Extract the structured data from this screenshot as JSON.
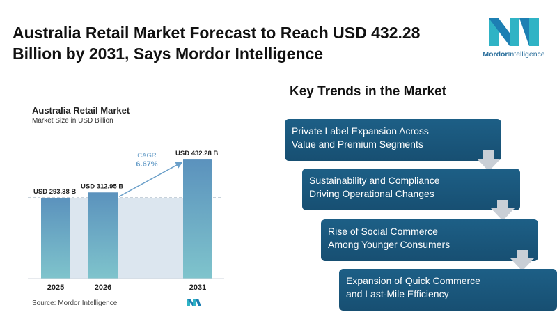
{
  "headline": {
    "line1": "Australia Retail Market Forecast to Reach USD 432.28",
    "line2": "Billion by 2031, Says Mordor Intelligence"
  },
  "logo": {
    "brand": "Mordor",
    "brand_suffix": "Intelligence",
    "icon": "mordor-logo-icon"
  },
  "chart_data": {
    "type": "bar",
    "title": "Australia Retail Market",
    "subtitle": "Market Size in USD Billion",
    "categories": [
      "2025",
      "2026",
      "2031"
    ],
    "values": [
      293.38,
      312.95,
      432.28
    ],
    "data_labels": [
      "USD 293.38 B",
      "USD 312.95 B",
      "USD 432.28 B"
    ],
    "cagr_label": "CAGR",
    "cagr_value": "6.67%",
    "grid": false,
    "colors": {
      "bar_top": "#5b92bd",
      "bar_bottom": "#7fc4cc",
      "band": "#dce6ef",
      "dash": "#8fa3b5",
      "arrow": "#6a9fc9"
    }
  },
  "source": "Source: Mordor Intelligence",
  "trends": {
    "title": "Key Trends in the Market",
    "items": [
      {
        "line1": "Private Label Expansion Across",
        "line2": "Value and Premium Segments"
      },
      {
        "line1": "Sustainability and Compliance",
        "line2": "Driving Operational Changes"
      },
      {
        "line1": "Rise of Social Commerce",
        "line2": "Among Younger Consumers"
      },
      {
        "line1": "Expansion of Quick Commerce",
        "line2": "and Last-Mile Efficiency"
      }
    ],
    "box_color": "#1b5a80",
    "arrow_color": "#c9cfd6"
  }
}
